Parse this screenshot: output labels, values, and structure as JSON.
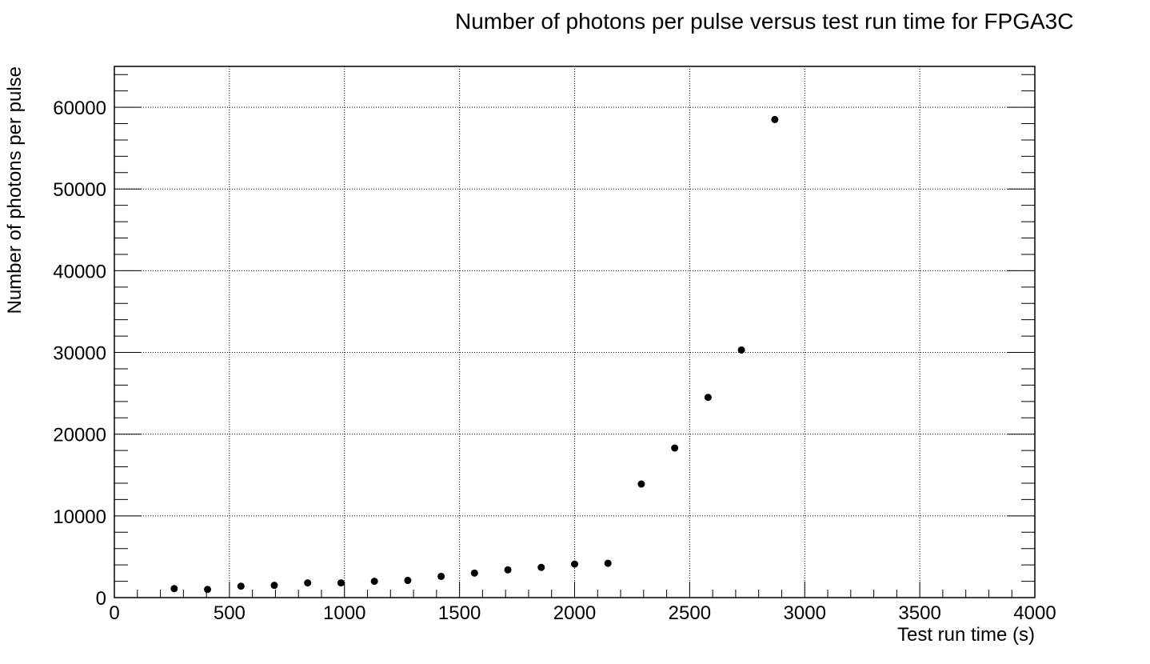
{
  "chart_data": {
    "type": "scatter",
    "title": "Number of photons per pulse versus test run time for FPGA3C",
    "xlabel": "Test run time (s)",
    "ylabel": "Number of photons per pulse",
    "xlim": [
      0,
      4000
    ],
    "ylim": [
      0,
      65000
    ],
    "x_ticks": [
      0,
      500,
      1000,
      1500,
      2000,
      2500,
      3000,
      3500,
      4000
    ],
    "y_ticks": [
      0,
      10000,
      20000,
      30000,
      40000,
      50000,
      60000
    ],
    "grid": true,
    "marker_color": "#000000",
    "series": [
      {
        "x": [
          260,
          405,
          550,
          695,
          840,
          985,
          1130,
          1275,
          1420,
          1565,
          1710,
          1855,
          2000,
          2145,
          2290,
          2435,
          2580,
          2725,
          2870
        ],
        "y": [
          1100,
          1000,
          1400,
          1500,
          1800,
          1800,
          2000,
          2100,
          2600,
          3000,
          3400,
          3700,
          4100,
          4200,
          13900,
          18300,
          24500,
          30300,
          58500
        ]
      }
    ]
  }
}
